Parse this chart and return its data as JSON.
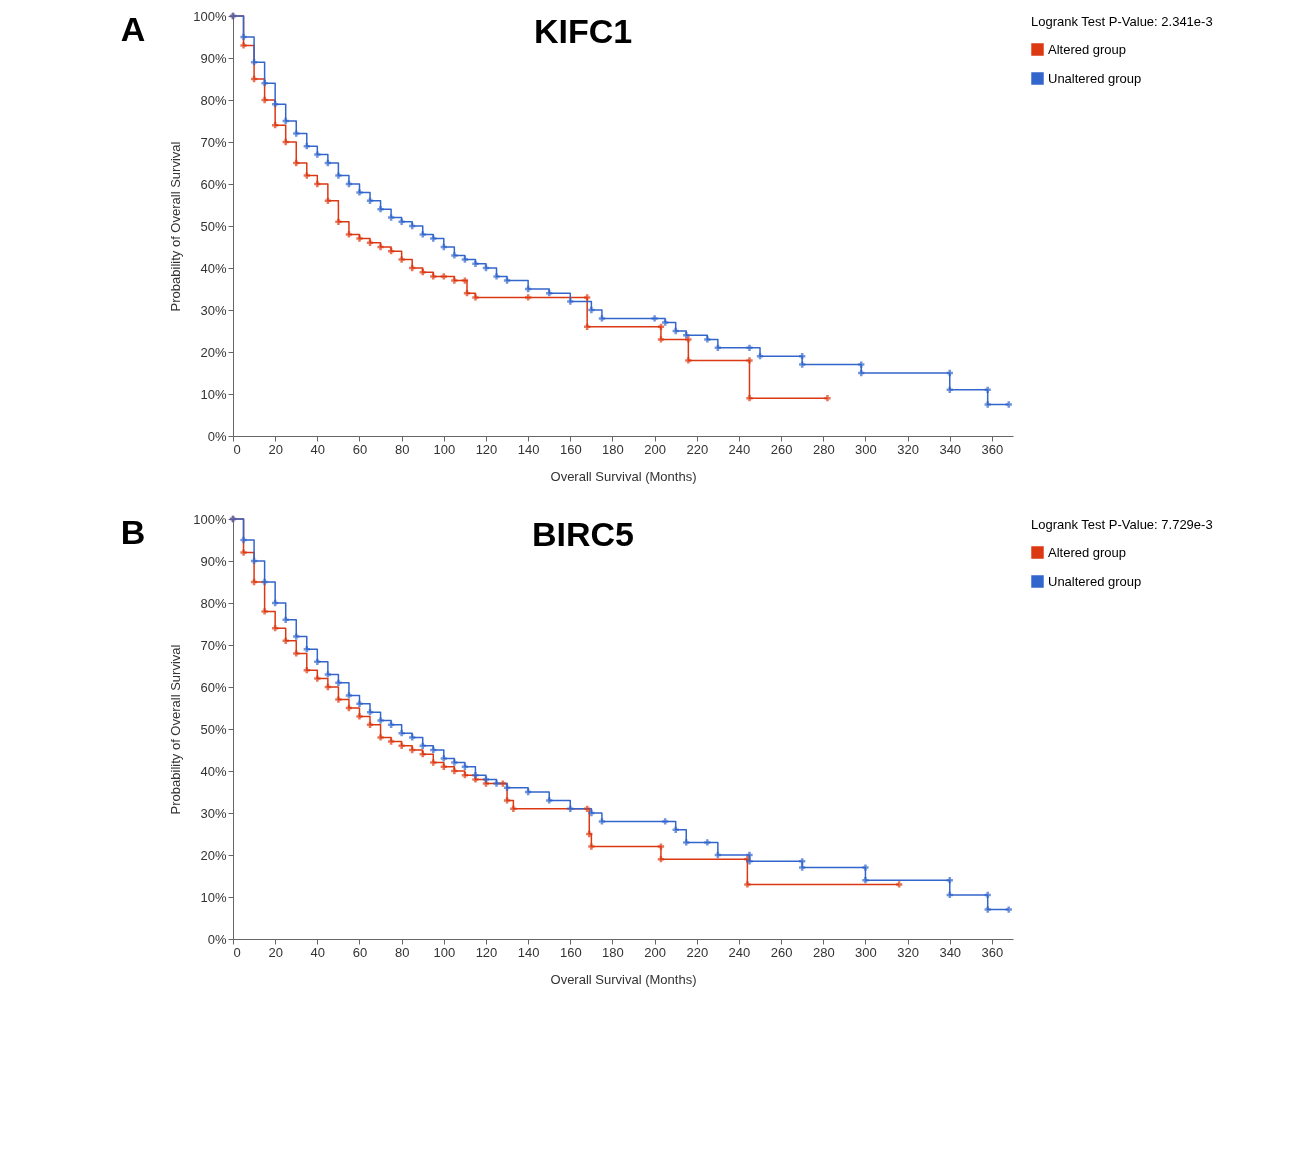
{
  "chart_data": [
    {
      "type": "step",
      "title": "KIFC1",
      "xlabel": "Overall Survival (Months)",
      "ylabel": "Probability of Overall Survival",
      "legend_title": "Logrank Test P-Value: 2.341e-3",
      "legend": "right",
      "marker": "cross",
      "line_style": "solid",
      "grid": false,
      "annotations": [
        "A"
      ],
      "xlim": [
        0,
        370
      ],
      "xticks": [
        0,
        20,
        40,
        60,
        80,
        100,
        120,
        140,
        160,
        180,
        200,
        220,
        240,
        260,
        280,
        300,
        320,
        340,
        360
      ],
      "ylim": [
        0,
        100
      ],
      "yticks": [
        {
          "value": 0,
          "label": "0%"
        },
        {
          "value": 10,
          "label": "10%"
        },
        {
          "value": 20,
          "label": "20%"
        },
        {
          "value": 30,
          "label": "30%"
        },
        {
          "value": 40,
          "label": "40%"
        },
        {
          "value": 50,
          "label": "50%"
        },
        {
          "value": 60,
          "label": "60%"
        },
        {
          "value": 70,
          "label": "70%"
        },
        {
          "value": 80,
          "label": "80%"
        },
        {
          "value": 90,
          "label": "90%"
        },
        {
          "value": 100,
          "label": "100%"
        }
      ],
      "series": [
        {
          "name": "Altered group",
          "color": "#dc3912",
          "x": [
            0,
            5,
            10,
            15,
            20,
            25,
            30,
            35,
            40,
            45,
            50,
            55,
            60,
            65,
            70,
            75,
            80,
            85,
            90,
            95,
            100,
            105,
            110,
            111,
            115,
            140,
            168,
            168,
            203,
            203,
            216,
            216,
            245,
            245,
            282
          ],
          "values": [
            100,
            93,
            85,
            80,
            74,
            70,
            65,
            62,
            60,
            56,
            51,
            48,
            47,
            46,
            45,
            44,
            42,
            40,
            39,
            38,
            38,
            37,
            37,
            34,
            33,
            33,
            33,
            26,
            26,
            23,
            23,
            18,
            18,
            9,
            9
          ]
        },
        {
          "name": "Unaltered group",
          "color": "#3366cc",
          "x": [
            0,
            5,
            10,
            15,
            20,
            25,
            30,
            35,
            40,
            45,
            50,
            55,
            60,
            65,
            70,
            75,
            80,
            85,
            90,
            95,
            100,
            105,
            110,
            115,
            120,
            125,
            130,
            140,
            150,
            160,
            170,
            175,
            200,
            205,
            210,
            215,
            225,
            230,
            245,
            250,
            270,
            270,
            298,
            298,
            340,
            340,
            358,
            358,
            368
          ],
          "values": [
            100,
            95,
            89,
            84,
            79,
            75,
            72,
            69,
            67,
            65,
            62,
            60,
            58,
            56,
            54,
            52,
            51,
            50,
            48,
            47,
            45,
            43,
            42,
            41,
            40,
            38,
            37,
            35,
            34,
            32,
            30,
            28,
            28,
            27,
            25,
            24,
            23,
            21,
            21,
            19,
            19,
            17,
            17,
            15,
            15,
            11,
            11,
            7.5,
            7.5
          ]
        }
      ]
    },
    {
      "type": "step",
      "title": "BIRC5",
      "xlabel": "Overall Survival (Months)",
      "ylabel": "Probability of Overall Survival",
      "legend_title": "Logrank Test P-Value: 7.729e-3",
      "legend": "right",
      "marker": "cross",
      "line_style": "solid",
      "grid": false,
      "annotations": [
        "B"
      ],
      "xlim": [
        0,
        370
      ],
      "xticks": [
        0,
        20,
        40,
        60,
        80,
        100,
        120,
        140,
        160,
        180,
        200,
        220,
        240,
        260,
        280,
        300,
        320,
        340,
        360
      ],
      "ylim": [
        0,
        100
      ],
      "yticks": [
        {
          "value": 0,
          "label": "0%"
        },
        {
          "value": 10,
          "label": "10%"
        },
        {
          "value": 20,
          "label": "20%"
        },
        {
          "value": 30,
          "label": "30%"
        },
        {
          "value": 40,
          "label": "40%"
        },
        {
          "value": 50,
          "label": "50%"
        },
        {
          "value": 60,
          "label": "60%"
        },
        {
          "value": 70,
          "label": "70%"
        },
        {
          "value": 80,
          "label": "80%"
        },
        {
          "value": 90,
          "label": "90%"
        },
        {
          "value": 100,
          "label": "100%"
        }
      ],
      "series": [
        {
          "name": "Altered group",
          "color": "#dc3912",
          "x": [
            0,
            5,
            10,
            15,
            20,
            25,
            30,
            35,
            40,
            45,
            50,
            55,
            60,
            65,
            70,
            75,
            80,
            85,
            90,
            95,
            100,
            105,
            110,
            115,
            120,
            128,
            130,
            133,
            168,
            169,
            170,
            203,
            203,
            244,
            244,
            316
          ],
          "values": [
            100,
            92,
            85,
            78,
            74,
            71,
            68,
            64,
            62,
            60,
            57,
            55,
            53,
            51,
            48,
            47,
            46,
            45,
            44,
            42,
            41,
            40,
            39,
            38,
            37,
            37,
            33,
            31,
            31,
            25,
            22,
            22,
            19,
            19,
            13,
            13
          ]
        },
        {
          "name": "Unaltered group",
          "color": "#3366cc",
          "x": [
            0,
            5,
            10,
            15,
            20,
            25,
            30,
            35,
            40,
            45,
            50,
            55,
            60,
            65,
            70,
            75,
            80,
            85,
            90,
            95,
            100,
            105,
            110,
            115,
            120,
            125,
            130,
            140,
            150,
            160,
            170,
            175,
            205,
            210,
            215,
            225,
            230,
            245,
            245,
            270,
            270,
            300,
            300,
            340,
            340,
            358,
            358,
            368
          ],
          "values": [
            100,
            95,
            90,
            85,
            80,
            76,
            72,
            69,
            66,
            63,
            61,
            58,
            56,
            54,
            52,
            51,
            49,
            48,
            46,
            45,
            43,
            42,
            41,
            39,
            38,
            37,
            36,
            35,
            33,
            31,
            30,
            28,
            28,
            26,
            23,
            23,
            20,
            20,
            18.5,
            18.5,
            17,
            17,
            14,
            14,
            10.5,
            10.5,
            7,
            7
          ]
        }
      ]
    }
  ]
}
